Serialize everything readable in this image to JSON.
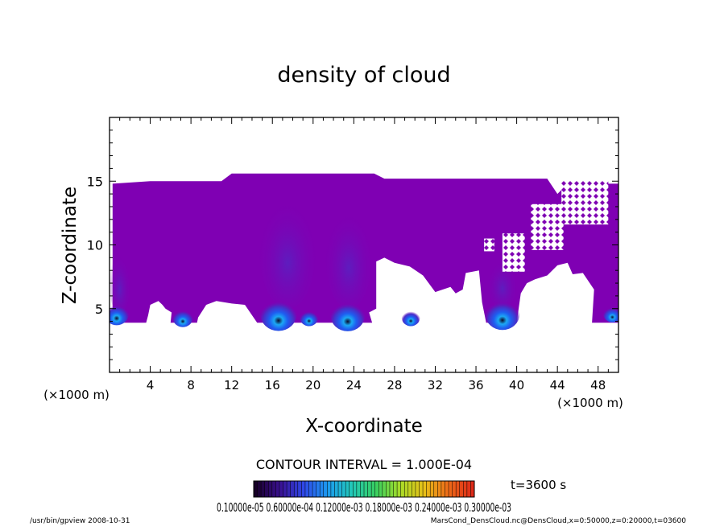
{
  "chart_data": {
    "type": "heatmap",
    "title": "density of cloud",
    "xlabel": "X-coordinate",
    "ylabel": "Z-coordinate",
    "x_unit": "(×1000 m)",
    "y_unit": "(×1000 m)",
    "xlim": [
      0,
      50
    ],
    "ylim": [
      0,
      20
    ],
    "x_ticks": [
      4,
      8,
      12,
      16,
      20,
      24,
      28,
      32,
      36,
      40,
      44,
      48
    ],
    "y_ticks": [
      5,
      10,
      15
    ],
    "contour_interval_text": "CONTOUR INTERVAL = 1.000E-04",
    "time_text": "t=3600 s",
    "colorbar_labels_text": "0.10000e-05 0.60000e-04 0.12000e-03 0.18000e-03 0.24000e-03 0.30000e-03",
    "colorbar_colors": [
      "#180028",
      "#3a1090",
      "#2f48e8",
      "#1c9cf0",
      "#22c8b8",
      "#38d060",
      "#a8dc28",
      "#e8c018",
      "#ee6a18",
      "#dd2a18"
    ],
    "cloud_color": "#7f00b3",
    "cloud_color_mid": "#6a10b8",
    "cloud_color_dense": "#4a2cc8",
    "core_colors": [
      "#1e5ef0",
      "#1ca8f4",
      "#0a0a2a"
    ],
    "cloud_region": {
      "outline": [
        [
          0.3,
          14.8
        ],
        [
          4,
          15
        ],
        [
          11,
          15
        ],
        [
          12,
          15.6
        ],
        [
          26,
          15.6
        ],
        [
          27,
          15.2
        ],
        [
          43,
          15.2
        ],
        [
          44,
          14
        ],
        [
          45,
          14.8
        ],
        [
          50,
          14.8
        ],
        [
          50,
          3.9
        ],
        [
          47.4,
          3.9
        ],
        [
          47.6,
          6.5
        ],
        [
          46.5,
          7.8
        ],
        [
          45.5,
          7.7
        ],
        [
          45,
          8.6
        ],
        [
          44,
          8.4
        ],
        [
          43,
          7.6
        ],
        [
          41.8,
          7.3
        ],
        [
          41,
          7
        ],
        [
          40.4,
          6.2
        ],
        [
          40,
          3.9
        ],
        [
          37,
          3.9
        ],
        [
          36.6,
          5.5
        ],
        [
          36.3,
          8
        ],
        [
          35,
          7.8
        ],
        [
          34.7,
          6.5
        ],
        [
          34,
          6.2
        ],
        [
          33.5,
          6.7
        ],
        [
          32,
          6.3
        ],
        [
          30.8,
          7.6
        ],
        [
          29.5,
          8.3
        ],
        [
          28,
          8.6
        ],
        [
          27,
          9
        ],
        [
          26.2,
          8.7
        ],
        [
          26.2,
          5
        ],
        [
          25.5,
          4.7
        ],
        [
          25.8,
          3.9
        ],
        [
          14.5,
          3.9
        ],
        [
          13.3,
          5.3
        ],
        [
          12,
          5.4
        ],
        [
          10.5,
          5.6
        ],
        [
          9.5,
          5.3
        ],
        [
          8.7,
          4.3
        ],
        [
          8.6,
          3.9
        ],
        [
          6,
          3.9
        ],
        [
          6.1,
          4.7
        ],
        [
          5.5,
          5
        ],
        [
          5.2,
          5.3
        ],
        [
          4.8,
          5.6
        ],
        [
          4,
          5.3
        ],
        [
          3.8,
          4.5
        ],
        [
          3.6,
          3.9
        ],
        [
          0.3,
          3.9
        ]
      ],
      "holes": [
        {
          "x": [
            38.6,
            40.8
          ],
          "z": [
            7.9,
            10.9
          ]
        },
        {
          "x": [
            41.4,
            44.6
          ],
          "z": [
            9.6,
            13.2
          ]
        },
        {
          "x": [
            44.4,
            49.0
          ],
          "z": [
            11.6,
            15.0
          ]
        },
        {
          "x": [
            36.8,
            37.8
          ],
          "z": [
            9.5,
            10.5
          ]
        }
      ],
      "cores": [
        {
          "x": 0.7,
          "z": 4.6,
          "r": 1.2
        },
        {
          "x": 7.2,
          "z": 4.3,
          "r": 1.0
        },
        {
          "x": 16.6,
          "z": 4.6,
          "r": 1.8
        },
        {
          "x": 19.6,
          "z": 4.3,
          "r": 0.9
        },
        {
          "x": 23.4,
          "z": 4.5,
          "r": 1.7
        },
        {
          "x": 29.6,
          "z": 4.3,
          "r": 0.9
        },
        {
          "x": 38.6,
          "z": 4.6,
          "r": 1.7
        },
        {
          "x": 49.4,
          "z": 4.6,
          "r": 0.9
        }
      ]
    }
  },
  "footer": {
    "left": "/usr/bin/gpview  2008-10-31",
    "right": "MarsCond_DensCloud.nc@DensCloud,x=0:50000,z=0:20000,t=03600"
  }
}
